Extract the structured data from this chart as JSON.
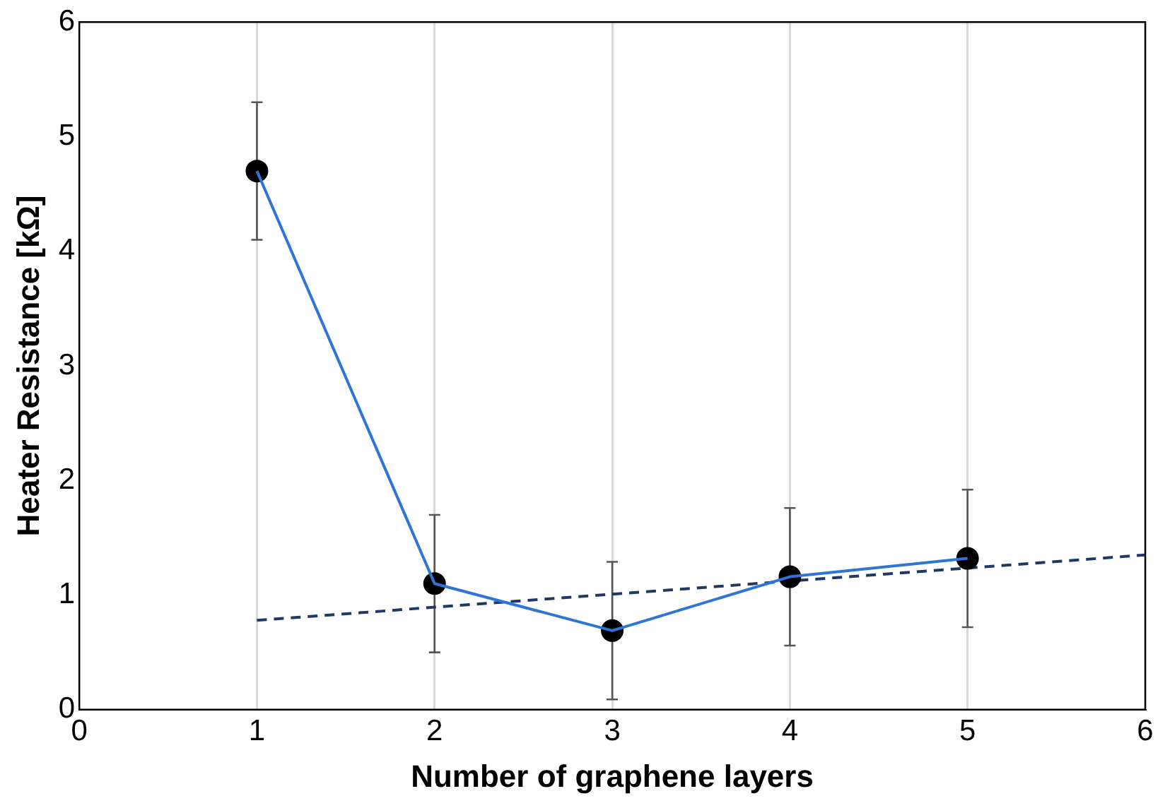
{
  "chart_data": {
    "type": "line",
    "xlabel": "Number of graphene layers",
    "ylabel": "Heater Resistance [kΩ]",
    "x": [
      1,
      2,
      3,
      4,
      5
    ],
    "series": [
      {
        "color": "#2e75d6",
        "values": [
          4.7,
          1.1,
          0.69,
          1.16,
          1.32
        ],
        "marker": "none"
      },
      {
        "type": "scatter",
        "color": "#000000",
        "values": [
          4.7,
          1.1,
          0.69,
          1.16,
          1.32
        ],
        "errors": [
          0.6,
          0.6,
          0.6,
          0.6,
          0.6
        ],
        "marker": "circle"
      },
      {
        "type": "line",
        "color": "#1f3864",
        "x": [
          1,
          6
        ],
        "values": [
          0.78,
          1.35
        ],
        "line_style": "dashed",
        "marker": "none"
      }
    ],
    "xlim": [
      0,
      6
    ],
    "xticks": [
      0,
      1,
      2,
      3,
      4,
      5,
      6
    ],
    "ylim": [
      0,
      6
    ],
    "yticks": [
      0,
      1,
      2,
      3,
      4,
      5,
      6
    ],
    "grid": "x",
    "legend": false
  }
}
